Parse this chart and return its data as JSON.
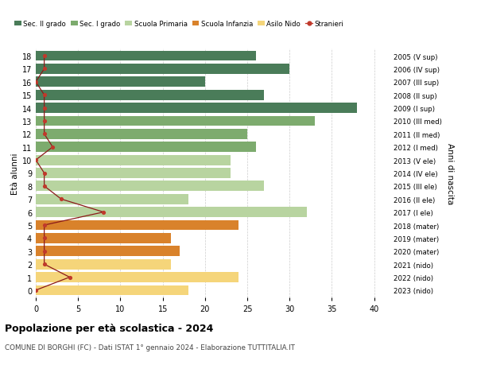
{
  "ages": [
    18,
    17,
    16,
    15,
    14,
    13,
    12,
    11,
    10,
    9,
    8,
    7,
    6,
    5,
    4,
    3,
    2,
    1,
    0
  ],
  "years": [
    "2005 (V sup)",
    "2006 (IV sup)",
    "2007 (III sup)",
    "2008 (II sup)",
    "2009 (I sup)",
    "2010 (III med)",
    "2011 (II med)",
    "2012 (I med)",
    "2013 (V ele)",
    "2014 (IV ele)",
    "2015 (III ele)",
    "2016 (II ele)",
    "2017 (I ele)",
    "2018 (mater)",
    "2019 (mater)",
    "2020 (mater)",
    "2021 (nido)",
    "2022 (nido)",
    "2023 (nido)"
  ],
  "bar_values": [
    26,
    30,
    20,
    27,
    38,
    33,
    25,
    26,
    23,
    23,
    27,
    18,
    32,
    24,
    16,
    17,
    16,
    24,
    18
  ],
  "bar_colors": [
    "#4a7c59",
    "#4a7c59",
    "#4a7c59",
    "#4a7c59",
    "#4a7c59",
    "#7dab6e",
    "#7dab6e",
    "#7dab6e",
    "#b8d4a0",
    "#b8d4a0",
    "#b8d4a0",
    "#b8d4a0",
    "#b8d4a0",
    "#d9822b",
    "#d9822b",
    "#d9822b",
    "#f5d57a",
    "#f5d57a",
    "#f5d57a"
  ],
  "stranieri_values": [
    1,
    1,
    0,
    1,
    1,
    1,
    1,
    2,
    0,
    1,
    1,
    3,
    8,
    1,
    1,
    1,
    1,
    4,
    0
  ],
  "legend_labels": [
    "Sec. II grado",
    "Sec. I grado",
    "Scuola Primaria",
    "Scuola Infanzia",
    "Asilo Nido",
    "Stranieri"
  ],
  "legend_colors": [
    "#4a7c59",
    "#7dab6e",
    "#b8d4a0",
    "#d9822b",
    "#f5d57a",
    "#c0392b"
  ],
  "title": "Popolazione per età scolastica - 2024",
  "subtitle": "COMUNE DI BORGHI (FC) - Dati ISTAT 1° gennaio 2024 - Elaborazione TUTTITALIA.IT",
  "ylabel_left": "Età alunni",
  "ylabel_right": "Anni di nascita",
  "xlim": [
    0,
    42
  ],
  "background_color": "#ffffff",
  "grid_color": "#cccccc",
  "stranieri_line_color": "#8b1a1a",
  "stranieri_dot_color": "#c0392b"
}
